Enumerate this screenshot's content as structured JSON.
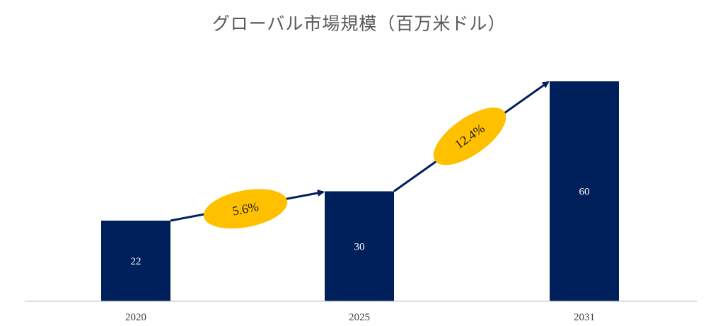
{
  "chart_data": {
    "type": "bar",
    "title": "グローバル市場規模（百万米ドル）",
    "categories": [
      "2020",
      "2025",
      "2031"
    ],
    "values": [
      22,
      30,
      60
    ],
    "data_labels": [
      "22",
      "30",
      "60"
    ],
    "growth_annotations": [
      {
        "from": "2020",
        "to": "2025",
        "label": "5.6%"
      },
      {
        "from": "2025",
        "to": "2031",
        "label": "12.4%"
      }
    ],
    "xlabel": "",
    "ylabel": "",
    "ylim": [
      0,
      60
    ],
    "grid": false,
    "legend": "none",
    "colors": {
      "bar": "#00205B",
      "arrow": "#00205B",
      "annotation_fill": "#FFC000",
      "axis": "#BFBFBF"
    }
  }
}
